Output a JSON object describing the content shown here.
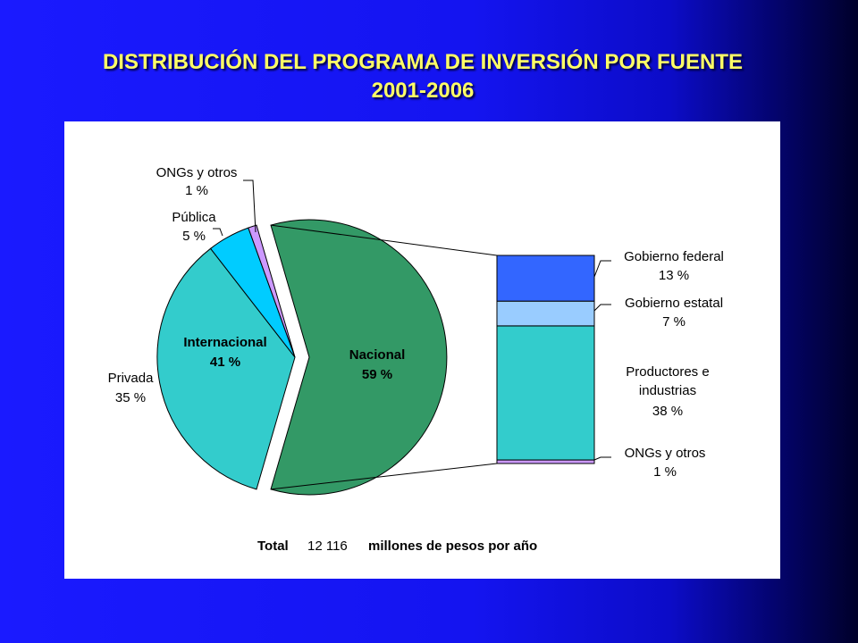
{
  "slide": {
    "title_line1": "DISTRIBUCIÓN DEL PROGRAMA DE INVERSIÓN POR FUENTE",
    "title_line2": "2001-2006"
  },
  "colors": {
    "background": "#1414f0",
    "title": "#ffff66",
    "nacional": "#339966",
    "privada": "#33cccc",
    "publica": "#00ccff",
    "ongs": "#cc99ff",
    "gobierno_federal": "#3366ff",
    "gobierno_estatal": "#99ccff",
    "productores": "#33cccc",
    "ongs_bar": "#cc99ff"
  },
  "chart_data": [
    {
      "type": "pie",
      "slices": [
        {
          "label": "Nacional",
          "value": 59,
          "pct_text": "59 %"
        },
        {
          "label": "Privada",
          "value": 35,
          "pct_text": "35 %"
        },
        {
          "label": "Pública",
          "value": 5,
          "pct_text": "5 %"
        },
        {
          "label": "ONGs y otros",
          "value": 1,
          "pct_text": "1 %"
        }
      ],
      "groups": [
        {
          "label": "Internacional",
          "value": 41,
          "pct_text": "41 %"
        },
        {
          "label": "Nacional",
          "value": 59,
          "pct_text": "59 %"
        }
      ],
      "exploded": "Nacional"
    },
    {
      "type": "bar",
      "stacked": true,
      "breakdown_of": "Nacional",
      "segments": [
        {
          "label": "Gobierno federal",
          "value": 13,
          "pct_text": "13 %"
        },
        {
          "label": "Gobierno estatal",
          "value": 7,
          "pct_text": "7 %"
        },
        {
          "label": "Productores e industrias",
          "line1": "Productores e",
          "line2": "industrias",
          "value": 38,
          "pct_text": "38 %"
        },
        {
          "label": "ONGs y otros",
          "value": 1,
          "pct_text": "1 %"
        }
      ]
    }
  ],
  "total": {
    "label": "Total",
    "value": "12 116",
    "unit": "millones de pesos por año"
  }
}
